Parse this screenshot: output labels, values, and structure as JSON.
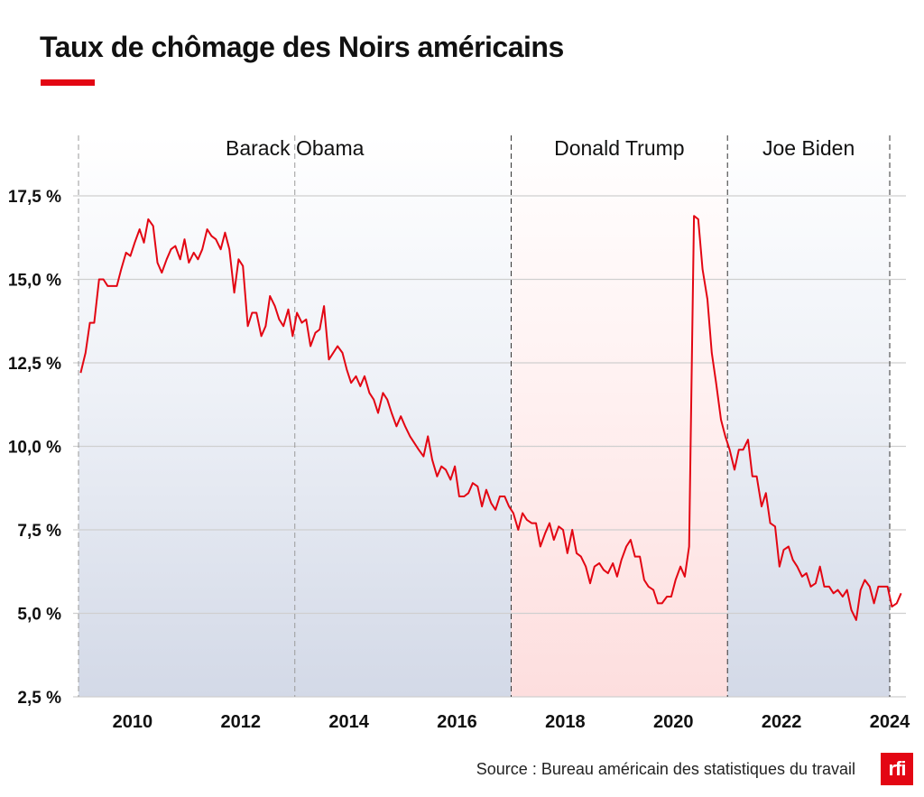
{
  "header": {
    "title": "Taux de chômage des Noirs américains"
  },
  "footer": {
    "source": "Source : Bureau américain des statistiques du travail",
    "logo_text": "rfi"
  },
  "colors": {
    "line": "#e30613",
    "accent": "#e30613",
    "period_democrat": "#dde3ee",
    "period_republican": "#fde4e4"
  },
  "chart_data": {
    "type": "line",
    "title": "Taux de chômage des Noirs américains",
    "xlabel": "",
    "ylabel": "",
    "xlim": [
      2008.9,
      2024.3
    ],
    "ylim": [
      2.5,
      17.5
    ],
    "y_ticks": [
      17.5,
      15.0,
      12.5,
      10.0,
      7.5,
      5.0,
      2.5
    ],
    "y_tick_labels": [
      "17,5 %",
      "15,0 %",
      "12,5 %",
      "10,0 %",
      "7,5 %",
      "5,0 %",
      "2,5 %"
    ],
    "x_ticks": [
      2010,
      2012,
      2014,
      2016,
      2018,
      2020,
      2022,
      2024
    ],
    "x_tick_labels": [
      "2010",
      "2012",
      "2014",
      "2016",
      "2018",
      "2020",
      "2022",
      "2024"
    ],
    "grid": true,
    "periods": [
      {
        "label": "Barack Obama",
        "start": 2009.0,
        "end": 2017.0,
        "party": "democrat"
      },
      {
        "label": "Donald Trump",
        "start": 2017.0,
        "end": 2021.0,
        "party": "republican"
      },
      {
        "label": "Joe Biden",
        "start": 2021.0,
        "end": 2024.0,
        "party": "democrat"
      }
    ],
    "dividers": [
      2009.0,
      2013.0,
      2017.0,
      2021.0,
      2024.0
    ],
    "series": [
      {
        "x": [
          2009.04,
          2009.13,
          2009.21,
          2009.29,
          2009.38,
          2009.46,
          2009.54,
          2009.63,
          2009.71,
          2009.79,
          2009.88,
          2009.96,
          2010.04,
          2010.13,
          2010.21,
          2010.29,
          2010.38,
          2010.46,
          2010.54,
          2010.63,
          2010.71,
          2010.79,
          2010.88,
          2010.96,
          2011.04,
          2011.13,
          2011.21,
          2011.29,
          2011.38,
          2011.46,
          2011.54,
          2011.63,
          2011.71,
          2011.79,
          2011.88,
          2011.96,
          2012.04,
          2012.13,
          2012.21,
          2012.29,
          2012.38,
          2012.46,
          2012.54,
          2012.63,
          2012.71,
          2012.79,
          2012.88,
          2012.96,
          2013.04,
          2013.13,
          2013.21,
          2013.29,
          2013.38,
          2013.46,
          2013.54,
          2013.63,
          2013.71,
          2013.79,
          2013.88,
          2013.96,
          2014.04,
          2014.13,
          2014.21,
          2014.29,
          2014.38,
          2014.46,
          2014.54,
          2014.63,
          2014.71,
          2014.79,
          2014.88,
          2014.96,
          2015.04,
          2015.13,
          2015.21,
          2015.29,
          2015.38,
          2015.46,
          2015.54,
          2015.63,
          2015.71,
          2015.79,
          2015.88,
          2015.96,
          2016.04,
          2016.13,
          2016.21,
          2016.29,
          2016.38,
          2016.46,
          2016.54,
          2016.63,
          2016.71,
          2016.79,
          2016.88,
          2016.96,
          2017.04,
          2017.13,
          2017.21,
          2017.29,
          2017.38,
          2017.46,
          2017.54,
          2017.63,
          2017.71,
          2017.79,
          2017.88,
          2017.96,
          2018.04,
          2018.13,
          2018.21,
          2018.29,
          2018.38,
          2018.46,
          2018.54,
          2018.63,
          2018.71,
          2018.79,
          2018.88,
          2018.96,
          2019.04,
          2019.13,
          2019.21,
          2019.29,
          2019.38,
          2019.46,
          2019.54,
          2019.63,
          2019.71,
          2019.79,
          2019.88,
          2019.96,
          2020.04,
          2020.13,
          2020.21,
          2020.29,
          2020.38,
          2020.46,
          2020.54,
          2020.63,
          2020.71,
          2020.79,
          2020.88,
          2020.96,
          2021.04,
          2021.13,
          2021.21,
          2021.29,
          2021.38,
          2021.46,
          2021.54,
          2021.63,
          2021.71,
          2021.79,
          2021.88,
          2021.96,
          2022.04,
          2022.13,
          2022.21,
          2022.29,
          2022.38,
          2022.46,
          2022.54,
          2022.63,
          2022.71,
          2022.79,
          2022.88,
          2022.96,
          2023.04,
          2023.13,
          2023.21,
          2023.29,
          2023.38,
          2023.46,
          2023.54,
          2023.63,
          2023.71,
          2023.79,
          2023.88,
          2023.96,
          2024.04,
          2024.13,
          2024.21
        ],
        "y": [
          12.2,
          12.8,
          13.7,
          13.7,
          15.0,
          15.0,
          14.8,
          14.8,
          14.8,
          15.3,
          15.8,
          15.7,
          16.1,
          16.5,
          16.1,
          16.8,
          16.6,
          15.5,
          15.2,
          15.6,
          15.9,
          16.0,
          15.6,
          16.2,
          15.5,
          15.8,
          15.6,
          15.9,
          16.5,
          16.3,
          16.2,
          15.9,
          16.4,
          15.9,
          14.6,
          15.6,
          15.4,
          13.6,
          14.0,
          14.0,
          13.3,
          13.6,
          14.5,
          14.2,
          13.8,
          13.6,
          14.1,
          13.3,
          14.0,
          13.7,
          13.8,
          13.0,
          13.4,
          13.5,
          14.2,
          12.6,
          12.8,
          13.0,
          12.8,
          12.3,
          11.9,
          12.1,
          11.8,
          12.1,
          11.6,
          11.4,
          11.0,
          11.6,
          11.4,
          11.0,
          10.6,
          10.9,
          10.6,
          10.3,
          10.1,
          9.9,
          9.7,
          10.3,
          9.6,
          9.1,
          9.4,
          9.3,
          9.0,
          9.4,
          8.5,
          8.5,
          8.6,
          8.9,
          8.8,
          8.2,
          8.7,
          8.3,
          8.1,
          8.5,
          8.5,
          8.2,
          8.0,
          7.5,
          8.0,
          7.8,
          7.7,
          7.7,
          7.0,
          7.4,
          7.7,
          7.2,
          7.6,
          7.5,
          6.8,
          7.5,
          6.8,
          6.7,
          6.4,
          5.9,
          6.4,
          6.5,
          6.3,
          6.2,
          6.5,
          6.1,
          6.6,
          7.0,
          7.2,
          6.7,
          6.7,
          6.0,
          5.8,
          5.7,
          5.3,
          5.3,
          5.5,
          5.5,
          6.0,
          6.4,
          6.1,
          7.0,
          16.9,
          16.8,
          15.3,
          14.4,
          12.8,
          11.9,
          10.8,
          10.3,
          9.9,
          9.3,
          9.9,
          9.9,
          10.2,
          9.1,
          9.1,
          8.2,
          8.6,
          7.7,
          7.6,
          6.4,
          6.9,
          7.0,
          6.6,
          6.4,
          6.1,
          6.2,
          5.8,
          5.9,
          6.4,
          5.8,
          5.8,
          5.6,
          5.7,
          5.5,
          5.7,
          5.1,
          4.8,
          5.7,
          6.0,
          5.8,
          5.3,
          5.8,
          5.8,
          5.8,
          5.2,
          5.3,
          5.6
        ]
      }
    ]
  }
}
